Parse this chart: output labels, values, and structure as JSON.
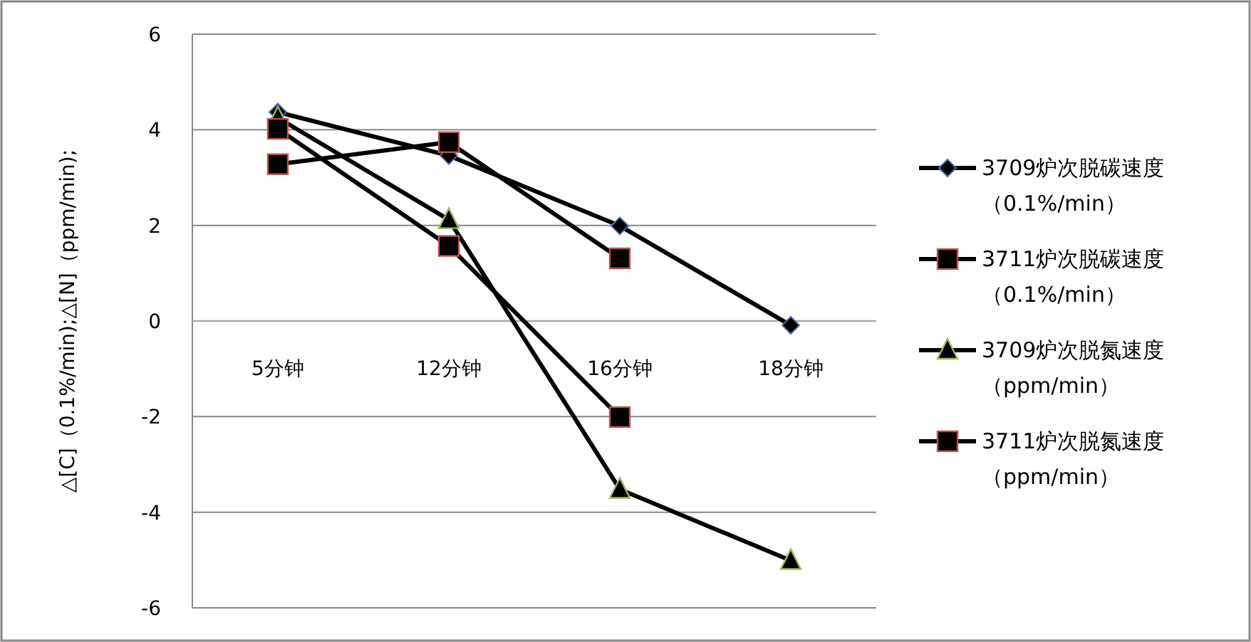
{
  "chart_data": {
    "type": "line",
    "ylabel": "△[C]（0.1%/min);△[N]（ppm/min);",
    "categories": [
      "5分钟",
      "12分钟",
      "16分钟",
      "18分钟"
    ],
    "series": [
      {
        "name": "3709炉次脱碳速度（0.1%/min）",
        "color": "#000000",
        "marker": "diamond",
        "values": [
          4.37,
          3.46,
          1.99,
          -0.09
        ]
      },
      {
        "name": "3711炉次脱碳速度（0.1%/min）",
        "color": "#000000",
        "marker": "square",
        "values": [
          3.28,
          3.74,
          1.31,
          null
        ]
      },
      {
        "name": "3709炉次脱氮速度（ppm/min）",
        "color": "#000000",
        "marker": "triangle",
        "values": [
          4.25,
          2.12,
          -3.52,
          -5.01
        ]
      },
      {
        "name": "3711炉次脱氮速度（ppm/min）",
        "color": "#000000",
        "marker": "square",
        "values": [
          4.02,
          1.57,
          -2.01,
          null
        ]
      }
    ],
    "ylim": [
      -6,
      6
    ],
    "yticks": [
      -6,
      -4,
      -2,
      0,
      2,
      4,
      6
    ],
    "grid": "y",
    "legend": "right",
    "line_style": "solid"
  }
}
